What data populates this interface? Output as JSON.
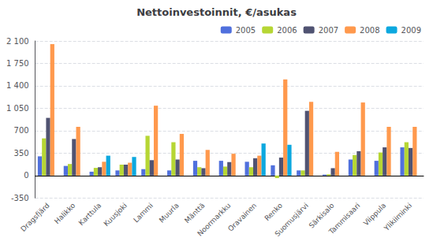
{
  "chart_data": {
    "type": "bar",
    "title": "Nettoinvestoinnit, €/asukas",
    "categories": [
      "Dragsfjärd",
      "Halikko",
      "Karttula",
      "Kuusjoki",
      "Lammi",
      "Muurla",
      "Mänttä",
      "Noormarkku",
      "Oravainen",
      "Renko",
      "Suomusjärvi",
      "Särkisalo",
      "Tammisaari",
      "Viippula",
      "Ylikiiminki"
    ],
    "series": [
      {
        "name": "2005",
        "values": [
          300,
          150,
          60,
          80,
          100,
          80,
          230,
          230,
          215,
          160,
          80,
          15,
          250,
          230,
          440
        ]
      },
      {
        "name": "2006",
        "values": [
          580,
          180,
          120,
          170,
          620,
          520,
          130,
          140,
          130,
          -40,
          80,
          20,
          320,
          360,
          520
        ]
      },
      {
        "name": "2007",
        "values": [
          900,
          570,
          130,
          170,
          240,
          250,
          115,
          210,
          270,
          280,
          1010,
          115,
          380,
          440,
          430
        ]
      },
      {
        "name": "2008",
        "values": [
          2050,
          760,
          215,
          200,
          1090,
          650,
          400,
          340,
          310,
          1500,
          1150,
          370,
          1140,
          760,
          760
        ]
      },
      {
        "name": "2009",
        "values": [
          0,
          0,
          310,
          290,
          0,
          0,
          0,
          0,
          500,
          480,
          0,
          0,
          0,
          0,
          0
        ]
      }
    ],
    "ylim": [
      -350,
      2100
    ],
    "yticks": [
      -350,
      0,
      350,
      700,
      {
        "value": 1050,
        "label": "1 050"
      },
      {
        "value": 1400,
        "label": "1 400"
      },
      {
        "value": 1750,
        "label": "1 750"
      },
      {
        "value": 2100,
        "label": "2 100"
      }
    ],
    "grid": true,
    "legend": "upper right"
  }
}
